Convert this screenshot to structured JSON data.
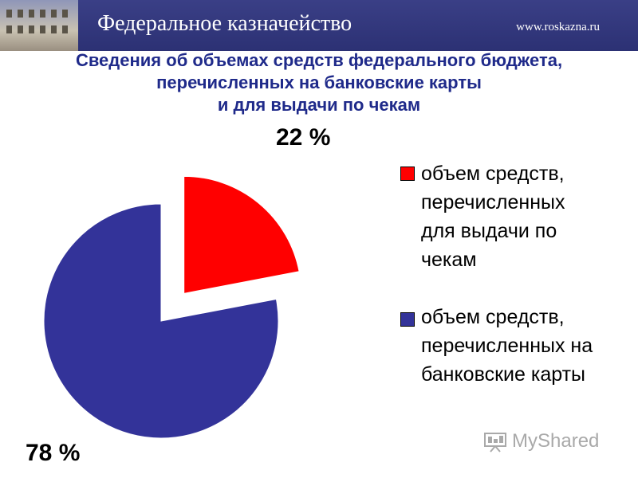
{
  "header": {
    "title": "Федеральное казначейство",
    "site": "www.roskazna.ru"
  },
  "chart_data": {
    "type": "pie",
    "title_lines": [
      "Сведения об объемах средств федерального бюджета,",
      "перечисленных на банковские карты",
      "и для выдачи по чекам"
    ],
    "slices": [
      {
        "label_lines": [
          "объем средств,",
          "перечисленных",
          "для выдачи по",
          "чекам"
        ],
        "value": 22,
        "data_label": "22 %",
        "color": "#ff0000",
        "exploded": true
      },
      {
        "label_lines": [
          "объем средств,",
          "перечисленных на",
          "банковские карты"
        ],
        "value": 78,
        "data_label": "78 %",
        "color": "#333399",
        "exploded": false
      }
    ],
    "legend_position": "right"
  },
  "watermark": {
    "text": "MyShared",
    "icon": "presentation-board-icon"
  }
}
